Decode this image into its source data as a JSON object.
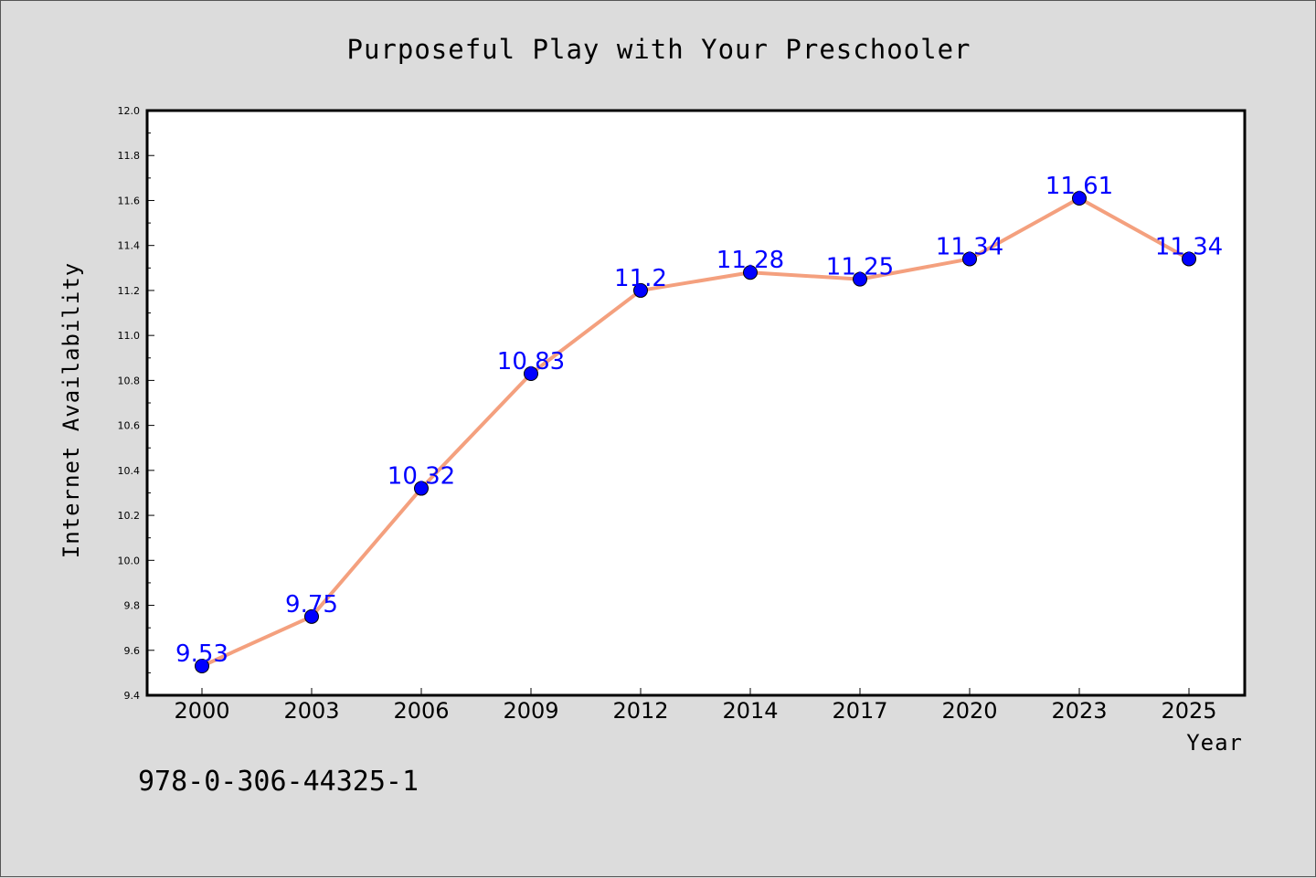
{
  "chart_data": {
    "type": "line",
    "title": "Purposeful Play with Your Preschooler",
    "xlabel": "Year",
    "ylabel": "Internet Availability",
    "categories": [
      "2000",
      "2003",
      "2006",
      "2009",
      "2012",
      "2014",
      "2017",
      "2020",
      "2023",
      "2025"
    ],
    "series": [
      {
        "values": [
          9.53,
          9.75,
          10.32,
          10.83,
          11.2,
          11.28,
          11.25,
          11.34,
          11.61,
          11.34
        ],
        "data_labels": [
          "9.53",
          "9.75",
          "10.32",
          "10.83",
          "11.2",
          "11.28",
          "11.25",
          "11.34",
          "11.61",
          "11.34"
        ],
        "line_color": "#f4a07e",
        "marker_color": "#0000ff"
      }
    ],
    "ylim": [
      9.4,
      12.0
    ],
    "yticks": [
      "9.4",
      "9.6",
      "9.8",
      "10.0",
      "10.2",
      "10.4",
      "10.6",
      "10.8",
      "11.0",
      "11.2",
      "11.4",
      "11.6",
      "11.8",
      "12.0"
    ],
    "grid": false,
    "legend": "none"
  },
  "footnote": "978-0-306-44325-1",
  "colors": {
    "background": "#dcdcdc",
    "plot_background": "#ffffff",
    "line": "#f4a07e",
    "marker": "#0000ff",
    "data_label": "#0000ff"
  }
}
